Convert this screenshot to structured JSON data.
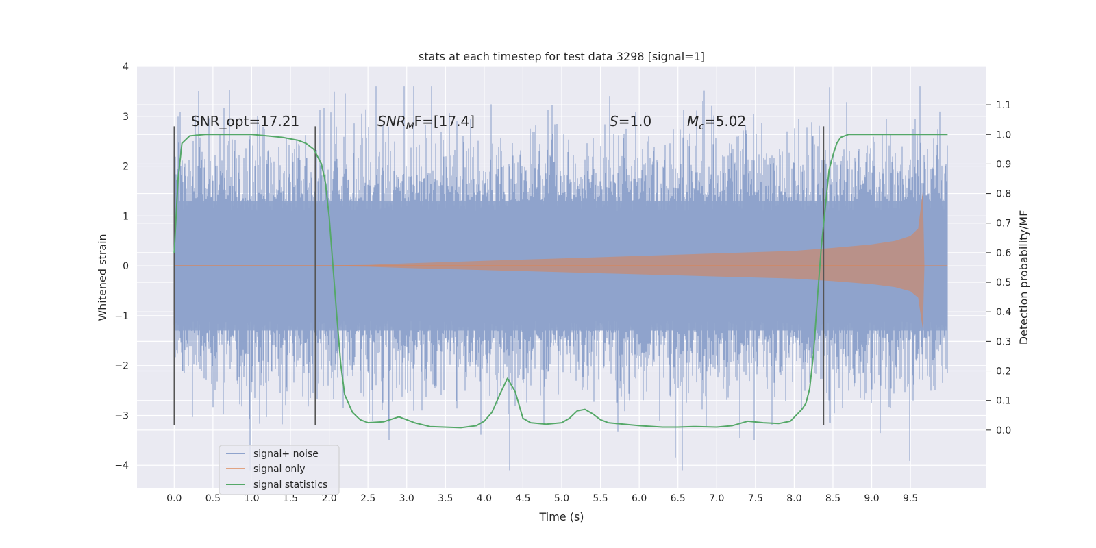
{
  "chart_data": {
    "type": "line",
    "title": "stats at each timestep for test data 3298 [signal=1]",
    "xlabel": "Time (s)",
    "ylabel_left": "Whitened strain",
    "ylabel_right": "Detection probability/MF",
    "xlim": [
      -0.48,
      10.48
    ],
    "ylim_left": [
      -4.45,
      4.0
    ],
    "ylim_right": [
      -0.195,
      1.23
    ],
    "x_ticks": [
      "0.0",
      "0.5",
      "1.0",
      "1.5",
      "2.0",
      "2.5",
      "3.0",
      "3.5",
      "4.0",
      "4.5",
      "5.0",
      "5.5",
      "6.0",
      "6.5",
      "7.0",
      "7.5",
      "8.0",
      "8.5",
      "9.0",
      "9.5"
    ],
    "y_ticks_left": [
      "−4",
      "−3",
      "−2",
      "−1",
      "0",
      "1",
      "2",
      "3",
      "4"
    ],
    "y_ticks_right": [
      "0.0",
      "0.1",
      "0.2",
      "0.3",
      "0.4",
      "0.5",
      "0.6",
      "0.7",
      "0.8",
      "0.9",
      "1.0",
      "1.1"
    ],
    "annotations": {
      "snr_opt": "SNR_opt=17.21",
      "snr_mf_sym": "SNR",
      "snr_mf_sub": "M",
      "snr_mf_tail": "F=[17.4]",
      "s_sym": "S",
      "s_val": "=1.0",
      "mc_sym": "M",
      "mc_sub": "c",
      "mc_val": "=5.02"
    },
    "legend": {
      "position": "lower-left",
      "entries": [
        "signal+ noise",
        "signal only",
        "signal statistics"
      ]
    },
    "vertical_markers_x": [
      0.0,
      1.82,
      8.38
    ],
    "series": [
      {
        "name": "signal+ noise",
        "color": "#8fa3cc",
        "description": "noise envelope",
        "x_range": [
          0.0,
          9.98
        ],
        "amplitude_typical": 1.8,
        "amplitude_peak": 3.6
      },
      {
        "name": "signal only",
        "color": "#dd8452",
        "description": "chirp amplitude envelope",
        "envelope_x": [
          0.0,
          1.0,
          2.0,
          2.5,
          3.0,
          4.0,
          5.0,
          6.0,
          7.0,
          8.0,
          8.5,
          9.0,
          9.3,
          9.5,
          9.6,
          9.66,
          9.68
        ],
        "envelope_y": [
          0.01,
          0.01,
          0.01,
          0.02,
          0.05,
          0.1,
          0.15,
          0.2,
          0.25,
          0.3,
          0.36,
          0.43,
          0.5,
          0.6,
          0.75,
          1.5,
          0.0
        ]
      },
      {
        "name": "signal statistics",
        "color": "#55a868",
        "x": [
          0.0,
          0.05,
          0.1,
          0.2,
          0.4,
          0.8,
          1.0,
          1.2,
          1.4,
          1.6,
          1.7,
          1.8,
          1.9,
          1.95,
          2.0,
          2.05,
          2.1,
          2.15,
          2.2,
          2.3,
          2.4,
          2.5,
          2.7,
          2.9,
          3.1,
          3.3,
          3.7,
          3.9,
          4.0,
          4.1,
          4.2,
          4.3,
          4.4,
          4.5,
          4.6,
          4.8,
          5.0,
          5.1,
          5.2,
          5.3,
          5.4,
          5.5,
          5.6,
          5.8,
          6.0,
          6.3,
          6.5,
          6.7,
          7.0,
          7.2,
          7.4,
          7.6,
          7.8,
          7.95,
          8.1,
          8.15,
          8.2,
          8.25,
          8.3,
          8.35,
          8.4,
          8.45,
          8.5,
          8.55,
          8.6,
          8.7,
          9.0,
          9.5,
          9.98
        ],
        "y": [
          0.6,
          0.85,
          0.97,
          0.995,
          1.0,
          1.0,
          1.0,
          0.995,
          0.99,
          0.98,
          0.97,
          0.95,
          0.9,
          0.84,
          0.72,
          0.55,
          0.38,
          0.22,
          0.12,
          0.06,
          0.035,
          0.025,
          0.028,
          0.045,
          0.025,
          0.012,
          0.008,
          0.015,
          0.03,
          0.06,
          0.12,
          0.175,
          0.13,
          0.04,
          0.025,
          0.02,
          0.025,
          0.04,
          0.065,
          0.07,
          0.055,
          0.035,
          0.025,
          0.02,
          0.015,
          0.01,
          0.01,
          0.012,
          0.01,
          0.015,
          0.03,
          0.025,
          0.022,
          0.03,
          0.07,
          0.09,
          0.14,
          0.26,
          0.45,
          0.62,
          0.75,
          0.88,
          0.93,
          0.97,
          0.99,
          1.0,
          1.0,
          1.0,
          1.0
        ]
      }
    ]
  }
}
